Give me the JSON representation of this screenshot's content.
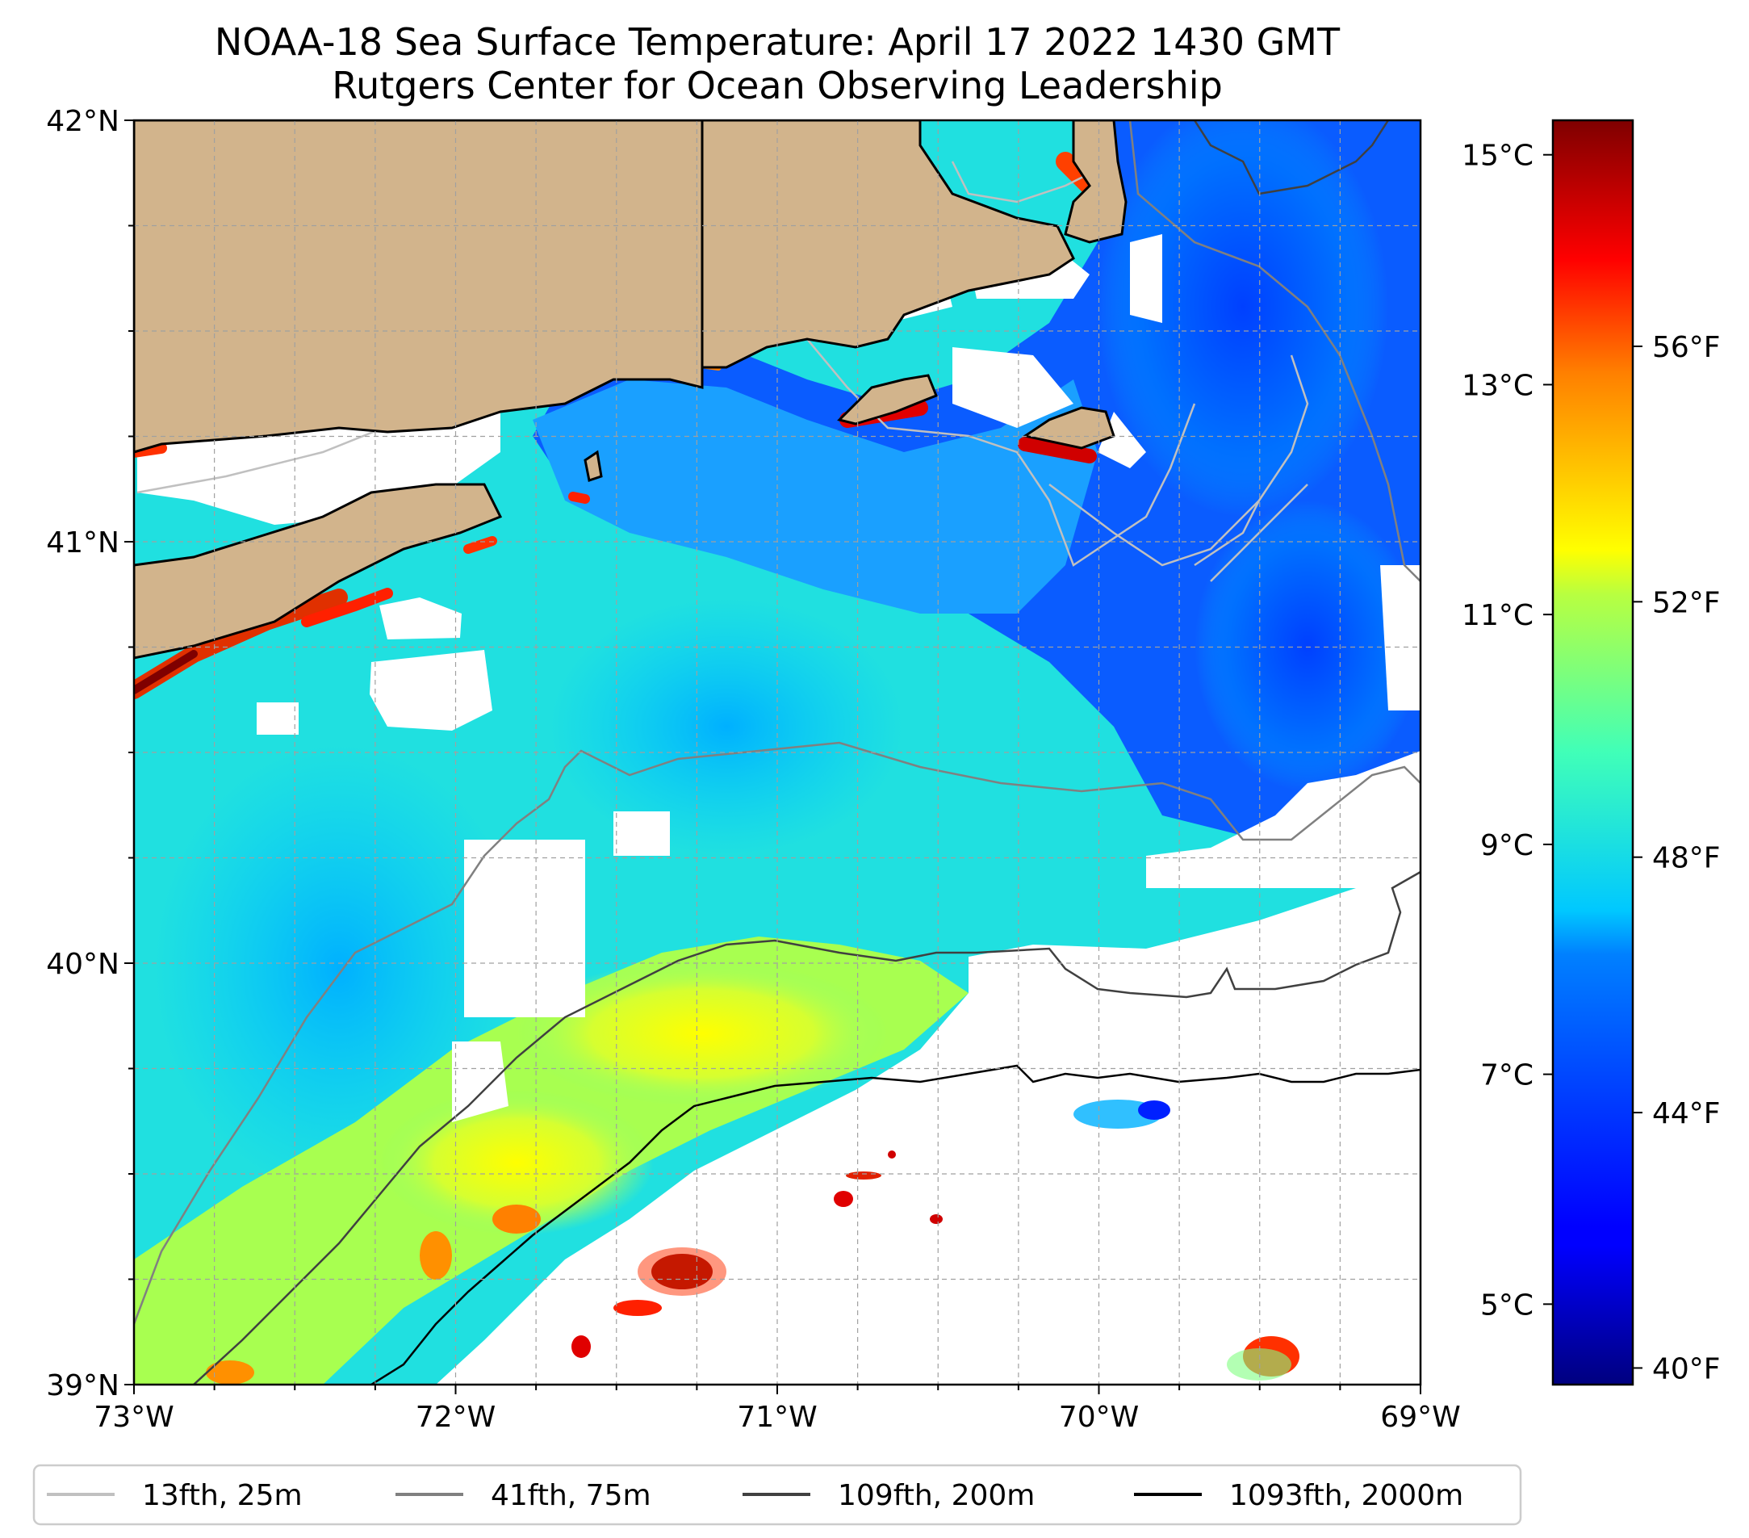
{
  "title": {
    "line1": "NOAA-18 Sea Surface Temperature: April 17 2022 1430 GMT",
    "line2": "Rutgers Center for Ocean Observing Leadership"
  },
  "map": {
    "lon_range": [
      -73,
      -69
    ],
    "lat_range": [
      39,
      42
    ],
    "lon_ticks": [
      {
        "value": -73,
        "label": "73°W"
      },
      {
        "value": -72,
        "label": "72°W"
      },
      {
        "value": -71,
        "label": "71°W"
      },
      {
        "value": -70,
        "label": "70°W"
      },
      {
        "value": -69,
        "label": "69°W"
      }
    ],
    "lat_ticks": [
      {
        "value": 42,
        "label": "42°N"
      },
      {
        "value": 41,
        "label": "41°N"
      },
      {
        "value": 40,
        "label": "40°N"
      },
      {
        "value": 39,
        "label": "39°N"
      }
    ],
    "land_color": "#d2b48c",
    "colormap": "jet"
  },
  "colorbar": {
    "celsius_ticks": [
      {
        "value": 15,
        "label": "15°C"
      },
      {
        "value": 13,
        "label": "13°C"
      },
      {
        "value": 11,
        "label": "11°C"
      },
      {
        "value": 9,
        "label": "9°C"
      },
      {
        "value": 7,
        "label": "7°C"
      },
      {
        "value": 5,
        "label": "5°C"
      }
    ],
    "fahrenheit_ticks": [
      {
        "value": 56,
        "label": "56°F"
      },
      {
        "value": 52,
        "label": "52°F"
      },
      {
        "value": 48,
        "label": "48°F"
      },
      {
        "value": 44,
        "label": "44°F"
      },
      {
        "value": 40,
        "label": "40°F"
      }
    ],
    "range_celsius": [
      4.3,
      15.3
    ]
  },
  "legend": [
    {
      "label": "13fth, 25m",
      "color": "#c0c0c0"
    },
    {
      "label": "41fth, 75m",
      "color": "#808080"
    },
    {
      "label": "109fth, 200m",
      "color": "#404040"
    },
    {
      "label": "1093fth, 2000m",
      "color": "#000000"
    }
  ]
}
